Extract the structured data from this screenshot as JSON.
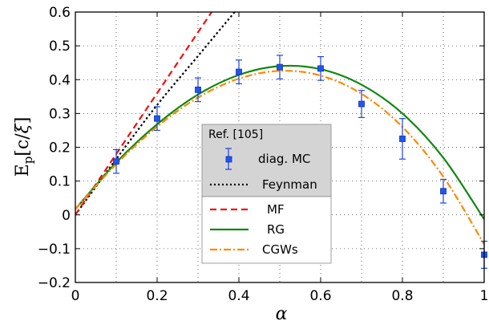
{
  "chart_data": {
    "type": "line",
    "xlabel": "α",
    "ylabel": "E_p[c/ξ]",
    "xlim": [
      0,
      1
    ],
    "ylim": [
      -0.2,
      0.6
    ],
    "x_ticks": [
      "0",
      "0.2",
      "0.4",
      "0.6",
      "0.8",
      "1"
    ],
    "y_ticks": [
      "−0.2",
      "−0.1",
      "0",
      "0.1",
      "0.2",
      "0.3",
      "0.4",
      "0.5",
      "0.6"
    ],
    "grid": true,
    "legend_placement": "lower-center",
    "ref_legend": {
      "title": "Ref. [105]",
      "entries": [
        "diag. MC",
        "Feynman"
      ]
    },
    "series": [
      {
        "name": "diag. MC",
        "style": "errorbar-squares",
        "color": "#1a44dd",
        "x": [
          0.1,
          0.2,
          0.3,
          0.4,
          0.5,
          0.6,
          0.7,
          0.8,
          0.9,
          1.0
        ],
        "y": [
          0.158,
          0.285,
          0.37,
          0.423,
          0.437,
          0.433,
          0.328,
          0.225,
          0.07,
          -0.118
        ],
        "err": [
          0.035,
          0.035,
          0.035,
          0.035,
          0.035,
          0.035,
          0.04,
          0.06,
          0.035,
          0.04
        ]
      },
      {
        "name": "Feynman",
        "style": "dotted",
        "color": "#000000",
        "x": [
          0,
          0.1,
          0.2,
          0.3,
          0.4
        ],
        "y": [
          0,
          0.165,
          0.325,
          0.47,
          0.615
        ]
      },
      {
        "name": "MF",
        "style": "dashed",
        "color": "#ee1111",
        "x": [
          0,
          0.1,
          0.2,
          0.3,
          0.35
        ],
        "y": [
          0,
          0.18,
          0.36,
          0.54,
          0.63
        ]
      },
      {
        "name": "RG",
        "style": "solid",
        "color": "#118811",
        "x": [
          0,
          0.1,
          0.2,
          0.3,
          0.4,
          0.5,
          0.6,
          0.7,
          0.8,
          0.9,
          1.0
        ],
        "y": [
          0.017,
          0.155,
          0.268,
          0.356,
          0.414,
          0.44,
          0.431,
          0.385,
          0.3,
          0.169,
          -0.013
        ]
      },
      {
        "name": "CGWs",
        "style": "dashdot",
        "color": "#ff8800",
        "x": [
          0,
          0.1,
          0.2,
          0.3,
          0.4,
          0.5,
          0.6,
          0.7,
          0.8,
          0.9,
          1.0
        ],
        "y": [
          0.017,
          0.15,
          0.261,
          0.347,
          0.403,
          0.426,
          0.412,
          0.358,
          0.26,
          0.113,
          -0.087
        ]
      }
    ],
    "legend_entries": [
      "MF",
      "RG",
      "CGWs"
    ]
  }
}
